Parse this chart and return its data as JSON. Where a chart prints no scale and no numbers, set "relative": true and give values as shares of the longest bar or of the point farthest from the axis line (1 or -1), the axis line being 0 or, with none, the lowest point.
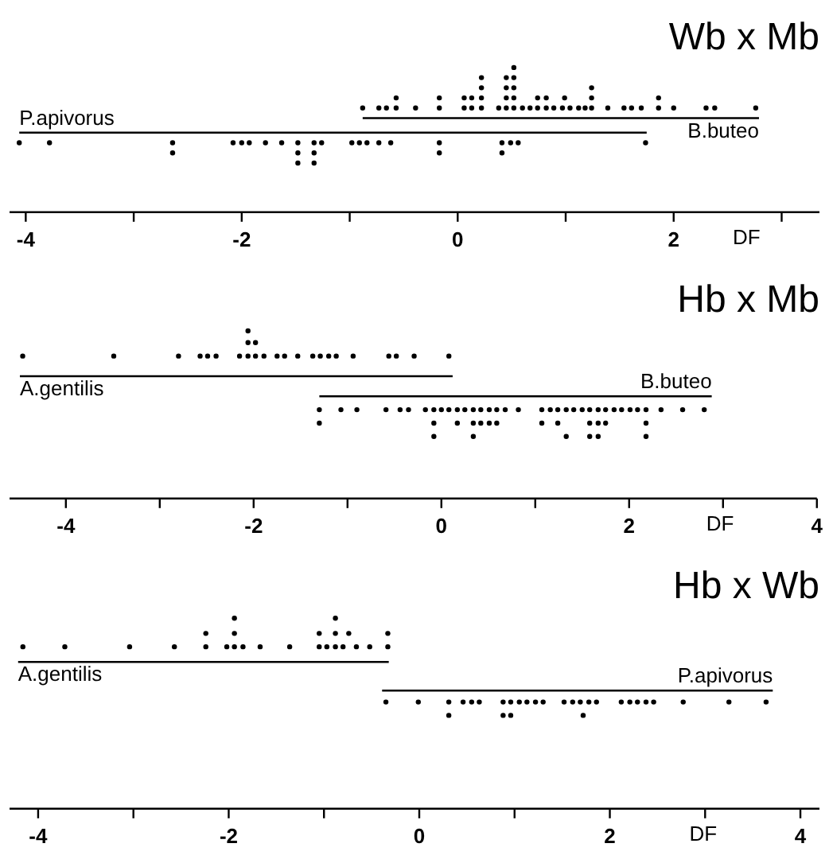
{
  "chart_data": [
    {
      "type": "scatter",
      "title": "Wb x Mb",
      "xlabel": "DF",
      "xlim": [
        -4.15,
        3.35
      ],
      "relative": true,
      "tick_labels": "x",
      "marker": "circle",
      "xticks": [
        -4,
        {
          "value": -3,
          "label": null
        },
        -2,
        {
          "value": -1,
          "label": null
        },
        0,
        {
          "value": 1,
          "label": null
        },
        2,
        {
          "value": 3,
          "label": null
        }
      ],
      "series": [
        {
          "name": "P.apivorus",
          "color": "#000000",
          "x": [
            -4.06,
            -3.78,
            -2.64,
            -2.08,
            -2.0,
            -1.93,
            -1.78,
            -1.63,
            -1.48,
            -1.33,
            -1.26,
            -0.98,
            -0.91,
            -0.84,
            -0.73,
            -0.62,
            -0.17,
            0.41,
            0.49,
            0.56,
            1.74,
            -2.64,
            -1.48,
            -1.33,
            -0.17,
            0.41,
            -1.48,
            -1.33
          ],
          "values": [
            0.48,
            0.48,
            0.48,
            0.48,
            0.48,
            0.48,
            0.48,
            0.48,
            0.48,
            0.48,
            0.48,
            0.48,
            0.48,
            0.48,
            0.48,
            0.48,
            0.48,
            0.48,
            0.48,
            0.48,
            0.48,
            0.41,
            0.41,
            0.41,
            0.41,
            0.41,
            0.34,
            0.34
          ]
        },
        {
          "type": "line",
          "marker": "none",
          "color": "#000000",
          "x": [
            -4.06,
            1.75
          ],
          "values": [
            0.55,
            0.55
          ]
        },
        {
          "name": "B.buteo",
          "color": "#000000",
          "x": [
            -0.88,
            -0.73,
            -0.66,
            -0.57,
            -0.39,
            -0.17,
            0.06,
            0.13,
            0.22,
            0.38,
            0.45,
            0.52,
            0.6,
            0.67,
            0.74,
            0.82,
            0.89,
            0.97,
            1.04,
            1.12,
            1.18,
            1.24,
            1.39,
            1.54,
            1.61,
            1.7,
            1.86,
            2.0,
            2.3,
            2.38,
            2.76,
            -0.57,
            -0.17,
            0.06,
            0.13,
            0.22,
            0.45,
            0.52,
            0.74,
            0.82,
            0.99,
            1.24,
            1.86,
            0.22,
            0.45,
            0.52,
            1.24,
            0.22,
            0.45,
            0.52,
            0.52
          ],
          "values": [
            0.72,
            0.72,
            0.72,
            0.72,
            0.72,
            0.72,
            0.72,
            0.72,
            0.72,
            0.72,
            0.72,
            0.72,
            0.72,
            0.72,
            0.72,
            0.72,
            0.72,
            0.72,
            0.72,
            0.72,
            0.72,
            0.72,
            0.72,
            0.72,
            0.72,
            0.72,
            0.72,
            0.72,
            0.72,
            0.72,
            0.72,
            0.79,
            0.79,
            0.79,
            0.79,
            0.79,
            0.79,
            0.79,
            0.79,
            0.79,
            0.79,
            0.79,
            0.79,
            0.86,
            0.86,
            0.86,
            0.86,
            0.93,
            0.93,
            0.93,
            1
          ]
        },
        {
          "type": "line",
          "marker": "none",
          "color": "#000000",
          "x": [
            -0.88,
            2.79
          ],
          "values": [
            0.65,
            0.65
          ]
        }
      ]
    },
    {
      "type": "scatter",
      "title": "Hb x Mb",
      "xlabel": "DF",
      "xlim": [
        -4.6,
        4
      ],
      "relative": true,
      "tick_labels": "x",
      "marker": "circle",
      "xticks": [
        -4,
        {
          "value": -3,
          "label": null
        },
        -2,
        {
          "value": -1,
          "label": null
        },
        0,
        {
          "value": 1,
          "label": null
        },
        2,
        {
          "value": 3,
          "label": null
        },
        4
      ],
      "series": [
        {
          "name": "A.gentilis",
          "color": "#000000",
          "x": [
            -4.46,
            -3.49,
            -2.8,
            -2.57,
            -2.49,
            -2.4,
            -2.15,
            -2.06,
            -1.98,
            -1.89,
            -1.75,
            -1.67,
            -1.53,
            -1.37,
            -1.29,
            -1.2,
            -1.12,
            -0.94,
            -0.56,
            -0.48,
            -0.29,
            0.08,
            -2.06,
            -1.98,
            -2.06
          ],
          "values": [
            0.85,
            0.85,
            0.85,
            0.85,
            0.85,
            0.85,
            0.85,
            0.85,
            0.85,
            0.85,
            0.85,
            0.85,
            0.85,
            0.85,
            0.85,
            0.85,
            0.85,
            0.85,
            0.85,
            0.85,
            0.85,
            0.85,
            0.93,
            0.93,
            1
          ]
        },
        {
          "type": "line",
          "marker": "none",
          "color": "#000000",
          "x": [
            -4.49,
            0.12
          ],
          "values": [
            0.73,
            0.73
          ]
        },
        {
          "name": "B.buteo",
          "color": "#000000",
          "x": [
            -1.3,
            -1.07,
            -0.9,
            -0.59,
            -0.44,
            -0.35,
            -0.17,
            -0.08,
            0.0,
            0.08,
            0.17,
            0.25,
            0.34,
            0.42,
            0.51,
            0.59,
            0.68,
            0.82,
            1.07,
            1.16,
            1.24,
            1.33,
            1.41,
            1.5,
            1.58,
            1.67,
            1.75,
            1.84,
            1.92,
            2.01,
            2.09,
            2.18,
            2.34,
            2.57,
            2.8,
            -1.3,
            -0.08,
            0.17,
            0.34,
            0.42,
            0.51,
            0.59,
            1.07,
            1.24,
            1.58,
            1.67,
            1.75,
            2.18,
            -0.08,
            0.34,
            1.33,
            1.58,
            1.67,
            2.18
          ],
          "values": [
            0.53,
            0.53,
            0.53,
            0.53,
            0.53,
            0.53,
            0.53,
            0.53,
            0.53,
            0.53,
            0.53,
            0.53,
            0.53,
            0.53,
            0.53,
            0.53,
            0.53,
            0.53,
            0.53,
            0.53,
            0.53,
            0.53,
            0.53,
            0.53,
            0.53,
            0.53,
            0.53,
            0.53,
            0.53,
            0.53,
            0.53,
            0.53,
            0.53,
            0.53,
            0.53,
            0.45,
            0.45,
            0.45,
            0.45,
            0.45,
            0.45,
            0.45,
            0.45,
            0.45,
            0.45,
            0.45,
            0.45,
            0.45,
            0.37,
            0.37,
            0.37,
            0.37,
            0.37,
            0.37
          ]
        },
        {
          "type": "line",
          "marker": "none",
          "color": "#000000",
          "x": [
            -1.3,
            2.88
          ],
          "values": [
            0.61,
            0.61
          ]
        }
      ]
    },
    {
      "type": "scatter",
      "title": "Hb x Wb",
      "xlabel": "DF",
      "xlim": [
        -4.3,
        4.2
      ],
      "relative": true,
      "tick_labels": "x",
      "marker": "circle",
      "xticks": [
        -4,
        {
          "value": -3,
          "label": null
        },
        -2,
        {
          "value": -1,
          "label": null
        },
        0,
        {
          "value": 1,
          "label": null
        },
        2,
        {
          "value": 3,
          "label": null
        },
        4
      ],
      "series": [
        {
          "name": "A.gentilis",
          "color": "#000000",
          "x": [
            -4.16,
            -3.72,
            -3.04,
            -2.57,
            -2.24,
            -2.02,
            -1.94,
            -1.85,
            -1.67,
            -1.36,
            -1.05,
            -0.97,
            -0.88,
            -0.8,
            -0.66,
            -0.52,
            -0.33,
            -2.24,
            -1.94,
            -1.05,
            -0.88,
            -0.74,
            -0.33,
            -1.94,
            -0.88
          ],
          "values": [
            0.85,
            0.85,
            0.85,
            0.85,
            0.85,
            0.85,
            0.85,
            0.85,
            0.85,
            0.85,
            0.85,
            0.85,
            0.85,
            0.85,
            0.85,
            0.85,
            0.85,
            0.92,
            0.92,
            0.92,
            0.92,
            0.92,
            0.92,
            1,
            1
          ]
        },
        {
          "type": "line",
          "marker": "none",
          "color": "#000000",
          "x": [
            -4.21,
            -0.32
          ],
          "values": [
            0.77,
            0.77
          ]
        },
        {
          "name": "P.apivorus",
          "color": "#000000",
          "x": [
            -0.35,
            -0.01,
            0.31,
            0.46,
            0.55,
            0.63,
            0.88,
            0.96,
            1.05,
            1.13,
            1.22,
            1.3,
            1.52,
            1.61,
            1.69,
            1.78,
            1.86,
            2.12,
            2.21,
            2.29,
            2.38,
            2.46,
            2.77,
            3.25,
            3.64,
            0.31,
            0.88,
            0.96,
            1.72
          ],
          "values": [
            0.56,
            0.56,
            0.56,
            0.56,
            0.56,
            0.56,
            0.56,
            0.56,
            0.56,
            0.56,
            0.56,
            0.56,
            0.56,
            0.56,
            0.56,
            0.56,
            0.56,
            0.56,
            0.56,
            0.56,
            0.56,
            0.56,
            0.56,
            0.56,
            0.56,
            0.49,
            0.49,
            0.49,
            0.49
          ]
        },
        {
          "type": "line",
          "marker": "none",
          "color": "#000000",
          "x": [
            -0.39,
            3.71
          ],
          "values": [
            0.62,
            0.62
          ]
        }
      ]
    }
  ]
}
